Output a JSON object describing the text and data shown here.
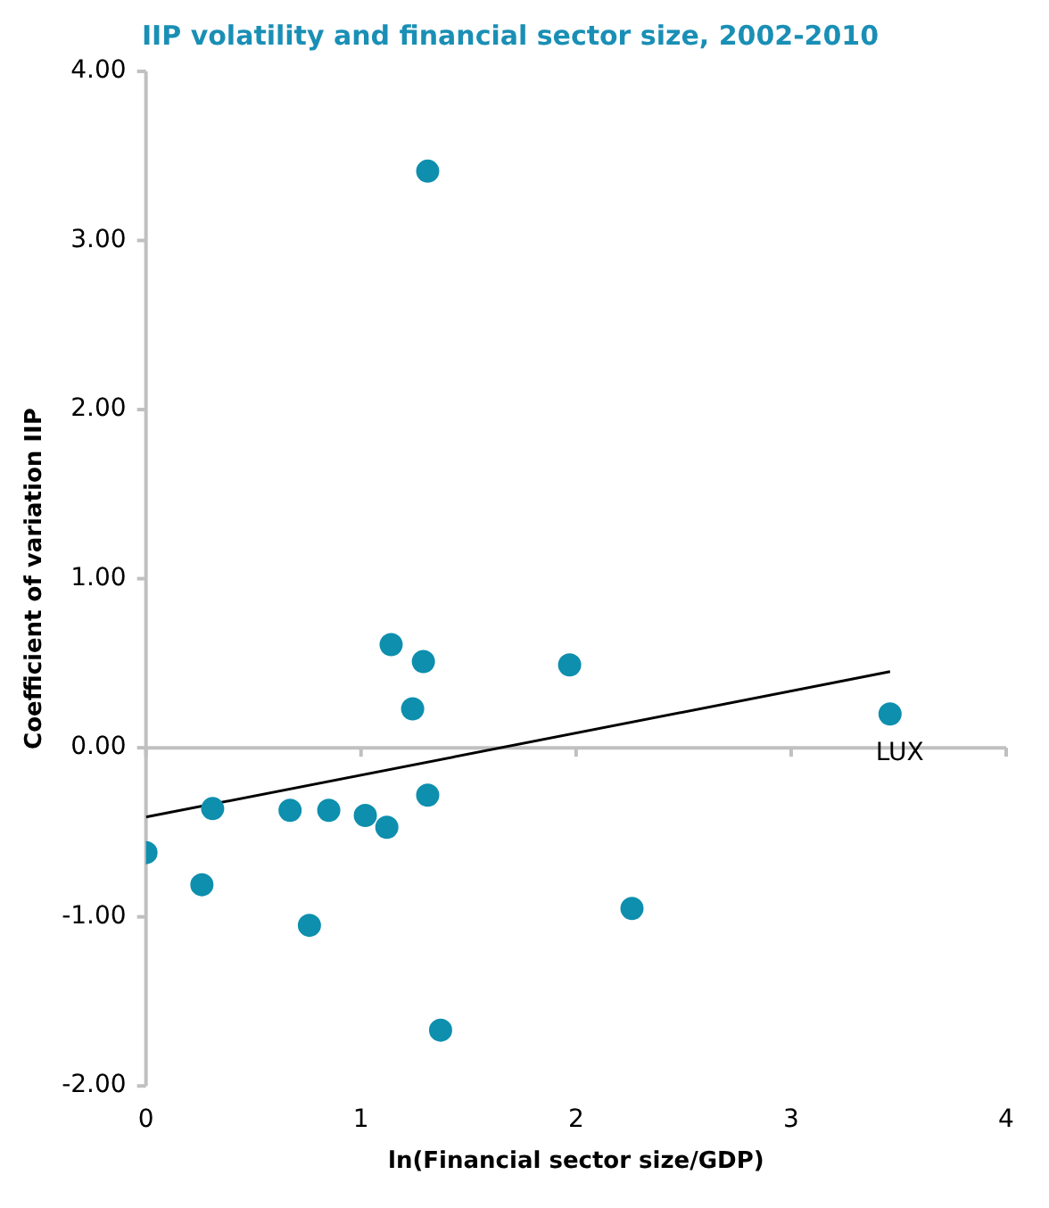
{
  "chart_data": {
    "type": "scatter",
    "title": "IIP volatility and financial sector size, 2002-2010",
    "xlabel": "ln(Financial sector size/GDP)",
    "ylabel": "Coefficient of variation IIP",
    "xlim": [
      0,
      4
    ],
    "xticks": [
      0,
      1,
      2,
      3,
      4
    ],
    "ylim": [
      -2,
      4
    ],
    "yticks": [
      {
        "value": -2,
        "label": "-2.00"
      },
      {
        "value": -1,
        "label": "-1.00"
      },
      {
        "value": 0,
        "label": "0.00"
      },
      {
        "value": 1,
        "label": "1.00"
      },
      {
        "value": 2,
        "label": "2.00"
      },
      {
        "value": 3,
        "label": "3.00"
      },
      {
        "value": 4,
        "label": "4.00"
      }
    ],
    "grid": false,
    "legend": false,
    "ref_lines": [
      {
        "axis": "y",
        "value": 0,
        "color": "#c0c0c0"
      }
    ],
    "series": [
      {
        "color": "#0e8fae",
        "marker": "circle",
        "x": [
          0,
          0.26,
          0.31,
          0.67,
          0.76,
          0.85,
          1.02,
          1.12,
          1.14,
          1.24,
          1.29,
          1.31,
          1.31,
          1.37,
          1.97,
          2.26,
          3.46
        ],
        "values": [
          -0.62,
          -0.81,
          -0.36,
          -0.37,
          -1.05,
          -0.37,
          -0.4,
          -0.47,
          0.61,
          0.23,
          0.51,
          3.41,
          -0.28,
          -1.67,
          0.49,
          -0.95,
          0.2
        ]
      },
      {
        "type": "line",
        "color": "#000000",
        "x": [
          0,
          3.46
        ],
        "values": [
          -0.41,
          0.45
        ]
      }
    ],
    "annotations": [
      {
        "text": "LUX",
        "x": 3.46,
        "y": 0.2
      }
    ]
  }
}
